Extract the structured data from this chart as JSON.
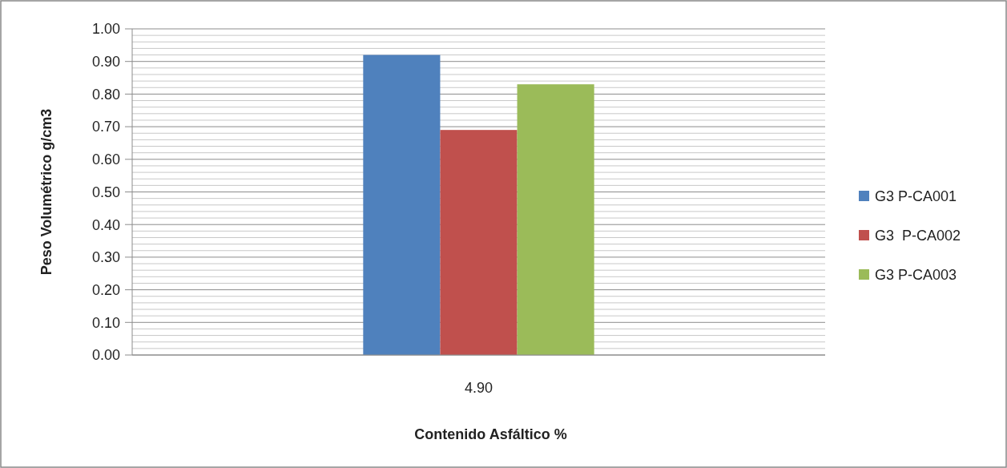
{
  "chart_data": {
    "type": "bar",
    "xlabel": "Contenido Asfáltico %",
    "ylabel": "Peso Volumétrico g/cm3",
    "categories": [
      "4.90"
    ],
    "series": [
      {
        "name": "G3 P-CA001",
        "color": "#4f81bd",
        "values": [
          0.92
        ]
      },
      {
        "name": "G3  P-CA002",
        "color": "#c0504d",
        "values": [
          0.69
        ]
      },
      {
        "name": "G3 P-CA003",
        "color": "#9bbb59",
        "values": [
          0.83
        ]
      }
    ],
    "ylim": [
      0,
      1
    ],
    "yticks": [
      {
        "value": 0,
        "label": "0.00"
      },
      {
        "value": 0.02,
        "label": null
      },
      {
        "value": 0.04,
        "label": null
      },
      {
        "value": 0.06,
        "label": null
      },
      {
        "value": 0.08,
        "label": null
      },
      {
        "value": 0.1,
        "label": "0.10"
      },
      {
        "value": 0.12,
        "label": null
      },
      {
        "value": 0.14,
        "label": null
      },
      {
        "value": 0.16,
        "label": null
      },
      {
        "value": 0.18,
        "label": null
      },
      {
        "value": 0.2,
        "label": "0.20"
      },
      {
        "value": 0.22,
        "label": null
      },
      {
        "value": 0.24,
        "label": null
      },
      {
        "value": 0.26,
        "label": null
      },
      {
        "value": 0.28,
        "label": null
      },
      {
        "value": 0.3,
        "label": "0.30"
      },
      {
        "value": 0.32,
        "label": null
      },
      {
        "value": 0.34,
        "label": null
      },
      {
        "value": 0.36,
        "label": null
      },
      {
        "value": 0.38,
        "label": null
      },
      {
        "value": 0.4,
        "label": "0.40"
      },
      {
        "value": 0.42,
        "label": null
      },
      {
        "value": 0.44,
        "label": null
      },
      {
        "value": 0.46,
        "label": null
      },
      {
        "value": 0.48,
        "label": null
      },
      {
        "value": 0.5,
        "label": "0.50"
      },
      {
        "value": 0.52,
        "label": null
      },
      {
        "value": 0.54,
        "label": null
      },
      {
        "value": 0.56,
        "label": null
      },
      {
        "value": 0.58,
        "label": null
      },
      {
        "value": 0.6,
        "label": "0.60"
      },
      {
        "value": 0.62,
        "label": null
      },
      {
        "value": 0.64,
        "label": null
      },
      {
        "value": 0.66,
        "label": null
      },
      {
        "value": 0.68,
        "label": null
      },
      {
        "value": 0.7,
        "label": "0.70"
      },
      {
        "value": 0.72,
        "label": null
      },
      {
        "value": 0.74,
        "label": null
      },
      {
        "value": 0.76,
        "label": null
      },
      {
        "value": 0.78,
        "label": null
      },
      {
        "value": 0.8,
        "label": "0.80"
      },
      {
        "value": 0.82,
        "label": null
      },
      {
        "value": 0.84,
        "label": null
      },
      {
        "value": 0.86,
        "label": null
      },
      {
        "value": 0.88,
        "label": null
      },
      {
        "value": 0.9,
        "label": "0.90"
      },
      {
        "value": 0.92,
        "label": null
      },
      {
        "value": 0.94,
        "label": null
      },
      {
        "value": 0.96,
        "label": null
      },
      {
        "value": 0.98,
        "label": null
      },
      {
        "value": 1,
        "label": "1.00"
      }
    ],
    "grid": "y",
    "legend": "right"
  }
}
